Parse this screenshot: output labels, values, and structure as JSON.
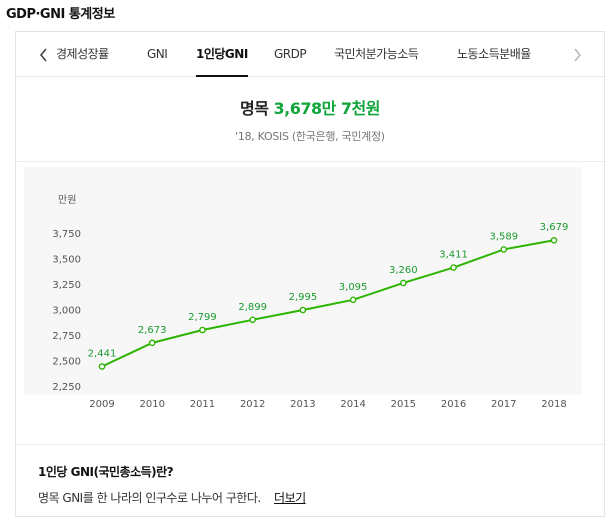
{
  "header": {
    "title": "GDP·GNI 통계정보"
  },
  "tabs": [
    {
      "label": "경제성장률"
    },
    {
      "label": "GNI"
    },
    {
      "label": "1인당GNI"
    },
    {
      "label": "GRDP"
    },
    {
      "label": "국민처분가능소득"
    },
    {
      "label": "노동소득분배율"
    }
  ],
  "active_tab": "1인당GNI",
  "summary": {
    "label": "명목",
    "value": "3,678만 7천원",
    "source": "'18, KOSIS (한국은행, 국민계정)"
  },
  "chart_data": {
    "type": "line",
    "unit_label": "만원",
    "x": [
      "2009",
      "2010",
      "2011",
      "2012",
      "2013",
      "2014",
      "2015",
      "2016",
      "2017",
      "2018"
    ],
    "series": [
      {
        "values": [
          2441,
          2673,
          2799,
          2899,
          2995,
          3095,
          3260,
          3411,
          3589,
          3679
        ],
        "labels": [
          "2,441",
          "2,673",
          "2,799",
          "2,899",
          "2,995",
          "3,095",
          "3,260",
          "3,411",
          "3,589",
          "3,679"
        ]
      }
    ],
    "y_ticks": [
      2250,
      2500,
      2750,
      3000,
      3250,
      3500,
      3750
    ],
    "y_tick_labels": [
      "2,250",
      "2,500",
      "2,750",
      "3,000",
      "3,250",
      "3,500",
      "3,750"
    ],
    "ylim": [
      2250,
      3900
    ],
    "grid": true,
    "color": "#2db400"
  },
  "info": {
    "title": "1인당 GNI(국민총소득)란?",
    "description": "명목 GNI를 한 나라의 인구수로 나누어 구한다.",
    "more_link": "더보기"
  }
}
